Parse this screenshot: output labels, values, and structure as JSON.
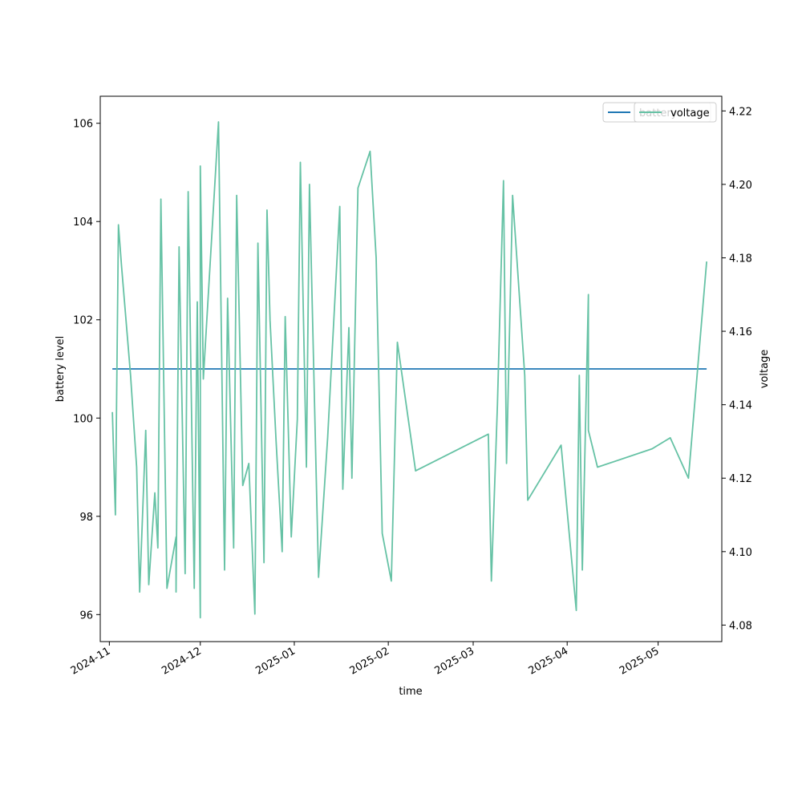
{
  "chart_data": {
    "type": "line",
    "xlabel": "time",
    "ylabel": "battery level",
    "y2label": "voltage",
    "xlim": [
      "2024-10-29",
      "2025-05-22"
    ],
    "ylim": [
      95.45,
      106.55
    ],
    "y2lim": [
      4.0755,
      4.224
    ],
    "x_ticks": [
      "2024-11",
      "2024-12",
      "2025-01",
      "2025-02",
      "2025-03",
      "2025-04",
      "2025-05"
    ],
    "y_ticks": [
      "96",
      "98",
      "100",
      "102",
      "104",
      "106"
    ],
    "y2_ticks": [
      "4.08",
      "4.10",
      "4.12",
      "4.14",
      "4.16",
      "4.18",
      "4.20",
      "4.22"
    ],
    "legend": {
      "placement": "top-right",
      "entries": [
        "battery",
        "voltage"
      ]
    },
    "grid": false,
    "series": [
      {
        "name": "battery",
        "axis": "left",
        "color": "#1f77b4",
        "points": [
          [
            "2024-11-02",
            101
          ],
          [
            "2025-05-17",
            101
          ]
        ]
      },
      {
        "name": "voltage",
        "axis": "right",
        "color": "#66c2a5",
        "points": [
          [
            "2024-11-02",
            4.138
          ],
          [
            "2024-11-03",
            4.11
          ],
          [
            "2024-11-04",
            4.189
          ],
          [
            "2024-11-05",
            4.178
          ],
          [
            "2024-11-08",
            4.148
          ],
          [
            "2024-11-10",
            4.123
          ],
          [
            "2024-11-11",
            4.089
          ],
          [
            "2024-11-13",
            4.133
          ],
          [
            "2024-11-14",
            4.091
          ],
          [
            "2024-11-16",
            4.116
          ],
          [
            "2024-11-17",
            4.101
          ],
          [
            "2024-11-18",
            4.196
          ],
          [
            "2024-11-20",
            4.09
          ],
          [
            "2024-11-23",
            4.104
          ],
          [
            "2024-11-23",
            4.089
          ],
          [
            "2024-11-24",
            4.183
          ],
          [
            "2024-11-26",
            4.094
          ],
          [
            "2024-11-27",
            4.198
          ],
          [
            "2024-11-29",
            4.09
          ],
          [
            "2024-11-30",
            4.168
          ],
          [
            "2024-12-01",
            4.082
          ],
          [
            "2024-12-01",
            4.205
          ],
          [
            "2024-12-02",
            4.147
          ],
          [
            "2024-12-07",
            4.217
          ],
          [
            "2024-12-09",
            4.095
          ],
          [
            "2024-12-10",
            4.169
          ],
          [
            "2024-12-12",
            4.101
          ],
          [
            "2024-12-13",
            4.197
          ],
          [
            "2024-12-15",
            4.118
          ],
          [
            "2024-12-17",
            4.124
          ],
          [
            "2024-12-19",
            4.083
          ],
          [
            "2024-12-20",
            4.184
          ],
          [
            "2024-12-22",
            4.097
          ],
          [
            "2024-12-23",
            4.193
          ],
          [
            "2024-12-24",
            4.163
          ],
          [
            "2024-12-26",
            4.13
          ],
          [
            "2024-12-28",
            4.1
          ],
          [
            "2024-12-29",
            4.164
          ],
          [
            "2024-12-31",
            4.104
          ],
          [
            "2025-01-02",
            4.136
          ],
          [
            "2025-01-03",
            4.206
          ],
          [
            "2025-01-05",
            4.123
          ],
          [
            "2025-01-06",
            4.2
          ],
          [
            "2025-01-09",
            4.093
          ],
          [
            "2025-01-12",
            4.131
          ],
          [
            "2025-01-16",
            4.194
          ],
          [
            "2025-01-17",
            4.117
          ],
          [
            "2025-01-19",
            4.161
          ],
          [
            "2025-01-20",
            4.12
          ],
          [
            "2025-01-22",
            4.199
          ],
          [
            "2025-01-26",
            4.209
          ],
          [
            "2025-01-28",
            4.18
          ],
          [
            "2025-01-30",
            4.105
          ],
          [
            "2025-02-02",
            4.092
          ],
          [
            "2025-02-04",
            4.157
          ],
          [
            "2025-02-10",
            4.122
          ],
          [
            "2025-03-06",
            4.132
          ],
          [
            "2025-03-07",
            4.092
          ],
          [
            "2025-03-09",
            4.14
          ],
          [
            "2025-03-11",
            4.201
          ],
          [
            "2025-03-12",
            4.124
          ],
          [
            "2025-03-14",
            4.197
          ],
          [
            "2025-03-18",
            4.148
          ],
          [
            "2025-03-19",
            4.114
          ],
          [
            "2025-03-30",
            4.129
          ],
          [
            "2025-04-04",
            4.084
          ],
          [
            "2025-04-05",
            4.148
          ],
          [
            "2025-04-06",
            4.095
          ],
          [
            "2025-04-08",
            4.17
          ],
          [
            "2025-04-08",
            4.133
          ],
          [
            "2025-04-11",
            4.123
          ],
          [
            "2025-04-29",
            4.128
          ],
          [
            "2025-05-05",
            4.131
          ],
          [
            "2025-05-11",
            4.12
          ],
          [
            "2025-05-17",
            4.179
          ]
        ]
      }
    ]
  }
}
